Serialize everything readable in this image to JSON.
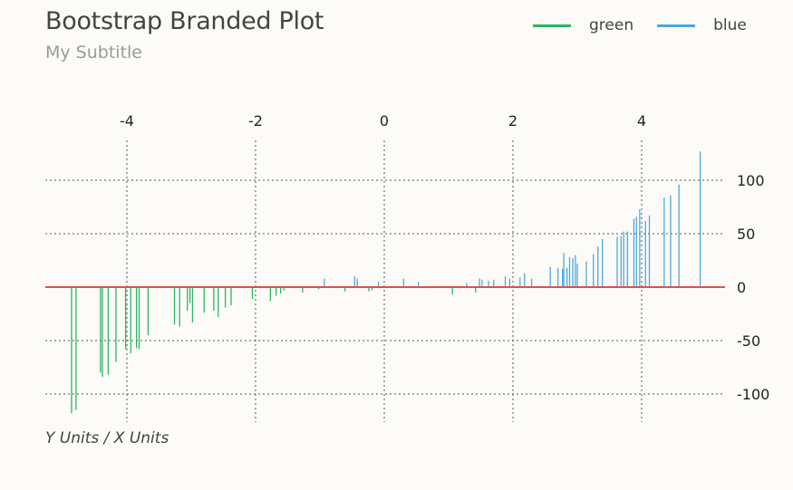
{
  "title": "Bootstrap Branded Plot",
  "subtitle": "My Subtitle",
  "footnote": "Y Units / X Units",
  "colors": {
    "green": "#2db564",
    "blue": "#4ea8de",
    "zero_line": "#d9534f",
    "grid": "#555555"
  },
  "legend": [
    {
      "label": "green",
      "color": "#2db564"
    },
    {
      "label": "blue",
      "color": "#4ea8de"
    }
  ],
  "chart_data": {
    "type": "bar",
    "title": "Bootstrap Branded Plot",
    "subtitle": "My Subtitle",
    "xlabel": "",
    "ylabel": "",
    "xlim": [
      -5.2,
      5.3
    ],
    "ylim": [
      -128,
      128
    ],
    "x_ticks": [
      -4,
      -2,
      0,
      2,
      4
    ],
    "y_ticks": [
      100,
      50,
      0,
      -50,
      -100
    ],
    "x_tick_labels": [
      "-4",
      "-2",
      "0",
      "2",
      "4"
    ],
    "y_tick_labels": [
      "100",
      "50",
      "0",
      "-50",
      "-100"
    ],
    "x_axis_position": "top",
    "y_axis_position": "right",
    "grid": true,
    "legend_position": "top-right",
    "series": [
      {
        "name": "green",
        "color": "#2db564",
        "x": [
          -4.86,
          -4.79,
          -4.41,
          -4.38,
          -4.29,
          -4.17,
          -4.02,
          -3.94,
          -3.85,
          -3.81,
          -3.67,
          -3.26,
          -3.18,
          -3.06,
          -3.02,
          -2.98,
          -2.8,
          -2.65,
          -2.58,
          -2.47,
          -2.38,
          -2.05,
          -1.77,
          -1.68,
          -1.61,
          -1.56,
          -1.27,
          -1.02,
          -0.61,
          -0.24,
          -0.19,
          1.06,
          1.42
        ],
        "values": [
          -118,
          -115,
          -80,
          -84,
          -82,
          -70,
          -58,
          -62,
          -57,
          -58,
          -45,
          -35,
          -37,
          -22,
          -15,
          -33,
          -24,
          -22,
          -28,
          -19,
          -17,
          -11,
          -13,
          -8,
          -6,
          -3,
          -5,
          -2,
          -4,
          -4,
          -3,
          -7,
          -5
        ]
      },
      {
        "name": "blue",
        "color": "#4ea8de",
        "x": [
          -0.93,
          -0.46,
          -0.42,
          -0.09,
          0.3,
          0.53,
          1.28,
          1.48,
          1.52,
          1.62,
          1.7,
          1.88,
          1.95,
          2.11,
          2.18,
          2.29,
          2.58,
          2.7,
          2.77,
          2.79,
          2.84,
          2.88,
          2.93,
          2.97,
          3.0,
          3.14,
          3.25,
          3.32,
          3.39,
          3.62,
          3.68,
          3.72,
          3.78,
          3.88,
          3.92,
          3.97,
          4.06,
          4.12,
          4.35,
          4.45,
          4.58,
          4.91
        ],
        "values": [
          8,
          10,
          8,
          5,
          8,
          5,
          4,
          8,
          7,
          6,
          7,
          10,
          8,
          9,
          13,
          8,
          19,
          18,
          17,
          32,
          18,
          28,
          27,
          30,
          22,
          24,
          31,
          38,
          45,
          47,
          48,
          52,
          52,
          64,
          66,
          73,
          62,
          67,
          84,
          86,
          96,
          127
        ]
      }
    ]
  }
}
